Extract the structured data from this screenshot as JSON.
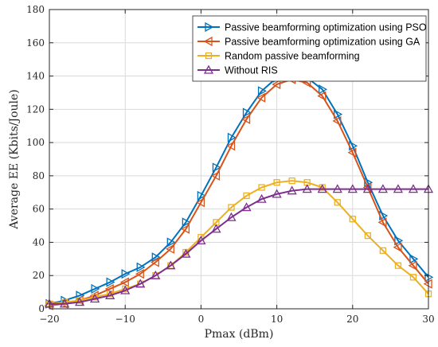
{
  "chart_data": {
    "type": "line",
    "title": "",
    "xlabel": "Pmax (dBm)",
    "ylabel": "Average EE (Kbits/Joule)",
    "xlim": [
      -20,
      30
    ],
    "ylim": [
      0,
      180
    ],
    "xticks": [
      -20,
      -10,
      0,
      10,
      20,
      30
    ],
    "yticks": [
      0,
      20,
      40,
      60,
      80,
      100,
      120,
      140,
      160,
      180
    ],
    "grid": true,
    "legend_position": "top-right",
    "x": [
      -20,
      -18,
      -16,
      -14,
      -12,
      -10,
      -8,
      -6,
      -4,
      -2,
      0,
      2,
      4,
      6,
      8,
      10,
      12,
      14,
      16,
      18,
      20,
      22,
      24,
      26,
      28,
      30
    ],
    "series": [
      {
        "name": "Passive beamforming optimization using PSO",
        "color": "#0072BD",
        "marker": "triangle-right",
        "values": [
          3,
          5,
          8,
          12,
          16,
          21,
          25,
          31,
          40,
          52,
          68,
          85,
          103,
          118,
          131,
          139,
          141,
          139,
          132,
          117,
          98,
          76,
          56,
          41,
          30,
          19
        ]
      },
      {
        "name": "Passive beamforming optimization using GA",
        "color": "#D95319",
        "marker": "triangle-left",
        "values": [
          2,
          3,
          5,
          8,
          12,
          16,
          21,
          28,
          36,
          48,
          64,
          80,
          98,
          114,
          127,
          135,
          138,
          136,
          128,
          113,
          94,
          73,
          52,
          37,
          26,
          15
        ]
      },
      {
        "name": "Random passive beamforming",
        "color": "#EDB120",
        "marker": "square",
        "values": [
          3,
          4,
          5,
          7,
          9,
          12,
          15,
          20,
          26,
          34,
          43,
          52,
          61,
          68,
          73,
          76,
          77,
          76,
          73,
          64,
          54,
          44,
          35,
          26,
          19,
          9
        ]
      },
      {
        "name": "Without RIS",
        "color": "#7E2F8E",
        "marker": "triangle-up",
        "values": [
          3,
          3,
          4,
          6,
          8,
          11,
          15,
          20,
          26,
          33,
          41,
          48,
          55,
          61,
          66,
          69,
          71,
          72,
          72,
          72,
          72,
          72,
          72,
          72,
          72,
          72
        ]
      }
    ]
  }
}
